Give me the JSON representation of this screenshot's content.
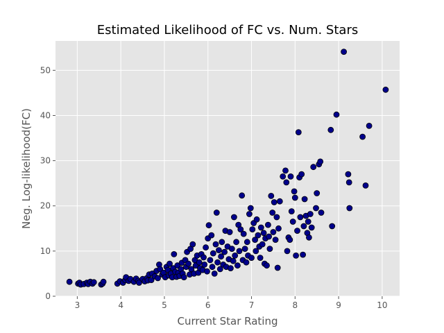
{
  "chart_data": {
    "type": "scatter",
    "title": "Estimated Likelihood of FC vs. Num. Stars",
    "xlabel": "Current Star Rating",
    "ylabel": "Neg. Log-likelihood(FC)",
    "xlim": [
      2.5,
      10.4
    ],
    "ylim": [
      0,
      56.5
    ],
    "xticks": [
      3,
      4,
      5,
      6,
      7,
      8,
      9,
      10
    ],
    "yticks": [
      0,
      10,
      20,
      30,
      40,
      50
    ],
    "grid": true,
    "background": "#e5e5e5",
    "grid_color": "#ffffff",
    "marker_color": "#00008b",
    "marker_edge_color": "#000000",
    "series": [
      {
        "points": [
          [
            2.82,
            3.2
          ],
          [
            3.02,
            2.8
          ],
          [
            3.05,
            3.0
          ],
          [
            3.08,
            2.6
          ],
          [
            3.15,
            2.7
          ],
          [
            3.22,
            3.0
          ],
          [
            3.25,
            2.7
          ],
          [
            3.3,
            3.2
          ],
          [
            3.35,
            2.8
          ],
          [
            3.38,
            3.1
          ],
          [
            3.55,
            2.6
          ],
          [
            3.58,
            2.8
          ],
          [
            3.6,
            3.2
          ],
          [
            3.92,
            2.8
          ],
          [
            3.98,
            3.3
          ],
          [
            4.05,
            3.0
          ],
          [
            4.1,
            3.6
          ],
          [
            4.12,
            4.2
          ],
          [
            4.18,
            3.4
          ],
          [
            4.22,
            3.8
          ],
          [
            4.3,
            3.2
          ],
          [
            4.35,
            3.9
          ],
          [
            4.4,
            3.4
          ],
          [
            4.42,
            3.0
          ],
          [
            4.5,
            3.8
          ],
          [
            4.55,
            3.3
          ],
          [
            4.6,
            4.0
          ],
          [
            4.62,
            3.5
          ],
          [
            4.65,
            4.8
          ],
          [
            4.7,
            3.6
          ],
          [
            4.72,
            5.0
          ],
          [
            4.78,
            4.4
          ],
          [
            4.82,
            5.6
          ],
          [
            4.85,
            4.0
          ],
          [
            4.88,
            7.0
          ],
          [
            4.9,
            6.0
          ],
          [
            4.95,
            4.8
          ],
          [
            4.98,
            5.2
          ],
          [
            5.02,
            4.2
          ],
          [
            5.05,
            6.5
          ],
          [
            5.08,
            5.8
          ],
          [
            5.1,
            4.6
          ],
          [
            5.12,
            7.2
          ],
          [
            5.15,
            5.0
          ],
          [
            5.18,
            4.2
          ],
          [
            5.2,
            6.2
          ],
          [
            5.22,
            9.3
          ],
          [
            5.25,
            5.4
          ],
          [
            5.28,
            4.3
          ],
          [
            5.3,
            6.8
          ],
          [
            5.32,
            5.2
          ],
          [
            5.35,
            4.5
          ],
          [
            5.38,
            6.0
          ],
          [
            5.4,
            7.4
          ],
          [
            5.42,
            5.0
          ],
          [
            5.45,
            4.2
          ],
          [
            5.48,
            8.0
          ],
          [
            5.5,
            6.5
          ],
          [
            5.52,
            9.8
          ],
          [
            5.55,
            7.2
          ],
          [
            5.58,
            4.8
          ],
          [
            5.6,
            10.5
          ],
          [
            5.62,
            6.0
          ],
          [
            5.65,
            11.5
          ],
          [
            5.68,
            5.0
          ],
          [
            5.7,
            8.0
          ],
          [
            5.72,
            6.8
          ],
          [
            5.75,
            9.0
          ],
          [
            5.78,
            5.2
          ],
          [
            5.8,
            7.5
          ],
          [
            5.82,
            6.2
          ],
          [
            5.85,
            9.3
          ],
          [
            5.88,
            5.8
          ],
          [
            5.9,
            8.6
          ],
          [
            5.92,
            7.0
          ],
          [
            5.95,
            10.8
          ],
          [
            5.98,
            5.5
          ],
          [
            6.0,
            12.8
          ],
          [
            6.02,
            15.7
          ],
          [
            6.05,
            8.0
          ],
          [
            6.08,
            13.5
          ],
          [
            6.1,
            6.5
          ],
          [
            6.12,
            9.5
          ],
          [
            6.15,
            5.0
          ],
          [
            6.18,
            11.5
          ],
          [
            6.2,
            18.5
          ],
          [
            6.22,
            7.5
          ],
          [
            6.25,
            10.2
          ],
          [
            6.28,
            6.0
          ],
          [
            6.3,
            8.8
          ],
          [
            6.32,
            12.0
          ],
          [
            6.35,
            7.0
          ],
          [
            6.38,
            9.8
          ],
          [
            6.4,
            14.5
          ],
          [
            6.42,
            6.5
          ],
          [
            6.45,
            11.0
          ],
          [
            6.48,
            8.2
          ],
          [
            6.5,
            14.2
          ],
          [
            6.52,
            6.2
          ],
          [
            6.55,
            10.5
          ],
          [
            6.58,
            7.8
          ],
          [
            6.6,
            17.5
          ],
          [
            6.62,
            9.0
          ],
          [
            6.65,
            12.0
          ],
          [
            6.68,
            6.8
          ],
          [
            6.7,
            15.8
          ],
          [
            6.72,
            10.0
          ],
          [
            6.75,
            14.8
          ],
          [
            6.78,
            22.3
          ],
          [
            6.8,
            8.0
          ],
          [
            6.82,
            13.8
          ],
          [
            6.85,
            10.5
          ],
          [
            6.88,
            7.5
          ],
          [
            6.9,
            12.0
          ],
          [
            6.92,
            9.0
          ],
          [
            6.95,
            18.2
          ],
          [
            6.98,
            19.5
          ],
          [
            7.0,
            8.5
          ],
          [
            7.02,
            14.8
          ],
          [
            7.05,
            16.2
          ],
          [
            7.08,
            12.5
          ],
          [
            7.1,
            10.0
          ],
          [
            7.12,
            17.0
          ],
          [
            7.15,
            13.5
          ],
          [
            7.18,
            11.0
          ],
          [
            7.2,
            8.5
          ],
          [
            7.22,
            15.2
          ],
          [
            7.25,
            11.5
          ],
          [
            7.28,
            14.0
          ],
          [
            7.3,
            7.2
          ],
          [
            7.32,
            12.8
          ],
          [
            7.35,
            6.8
          ],
          [
            7.38,
            15.8
          ],
          [
            7.4,
            13.2
          ],
          [
            7.42,
            10.5
          ],
          [
            7.45,
            22.2
          ],
          [
            7.48,
            18.5
          ],
          [
            7.5,
            14.2
          ],
          [
            7.52,
            20.8
          ],
          [
            7.55,
            12.5
          ],
          [
            7.58,
            17.5
          ],
          [
            7.6,
            6.3
          ],
          [
            7.62,
            15.0
          ],
          [
            7.65,
            21.0
          ],
          [
            7.72,
            26.5
          ],
          [
            7.78,
            27.8
          ],
          [
            7.8,
            25.2
          ],
          [
            7.82,
            10.0
          ],
          [
            7.85,
            13.0
          ],
          [
            7.88,
            12.5
          ],
          [
            7.9,
            26.5
          ],
          [
            7.92,
            18.8
          ],
          [
            7.95,
            16.5
          ],
          [
            7.98,
            23.2
          ],
          [
            8.0,
            21.8
          ],
          [
            8.02,
            9.0
          ],
          [
            8.05,
            14.5
          ],
          [
            8.08,
            36.3
          ],
          [
            8.1,
            26.3
          ],
          [
            8.12,
            17.5
          ],
          [
            8.15,
            27.0
          ],
          [
            8.18,
            9.2
          ],
          [
            8.2,
            15.5
          ],
          [
            8.22,
            21.5
          ],
          [
            8.25,
            17.8
          ],
          [
            8.28,
            14.0
          ],
          [
            8.3,
            16.5
          ],
          [
            8.32,
            13.0
          ],
          [
            8.35,
            18.2
          ],
          [
            8.38,
            15.2
          ],
          [
            8.42,
            28.6
          ],
          [
            8.48,
            19.5
          ],
          [
            8.5,
            22.8
          ],
          [
            8.55,
            29.2
          ],
          [
            8.58,
            29.8
          ],
          [
            8.6,
            18.5
          ],
          [
            8.82,
            36.8
          ],
          [
            8.85,
            15.5
          ],
          [
            8.95,
            40.2
          ],
          [
            9.12,
            54.1
          ],
          [
            9.22,
            27.0
          ],
          [
            9.24,
            25.2
          ],
          [
            9.25,
            19.5
          ],
          [
            9.55,
            35.3
          ],
          [
            9.62,
            24.5
          ],
          [
            9.7,
            37.7
          ],
          [
            10.08,
            45.7
          ]
        ]
      }
    ]
  }
}
